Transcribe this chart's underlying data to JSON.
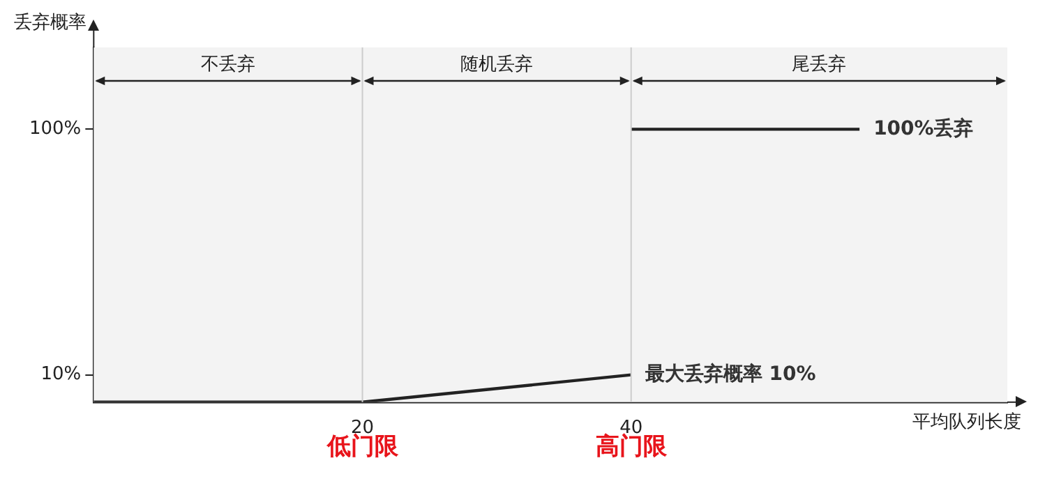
{
  "chart_data": {
    "type": "line",
    "xlabel": "平均队列长度",
    "ylabel": "丢弃概率",
    "series": [
      {
        "color": "#222222",
        "x": [
          0,
          20,
          40
        ],
        "values": [
          0,
          0,
          10
        ]
      },
      {
        "color": "#222222",
        "x": [
          40,
          57
        ],
        "values": [
          100,
          100
        ]
      }
    ],
    "xlim": [
      0,
      68
    ],
    "xticks": [
      20,
      40
    ],
    "ylim": [
      0,
      130
    ],
    "yticks": [
      {
        "value": 10,
        "label": "10%"
      },
      {
        "value": 100,
        "label": "100%"
      }
    ],
    "ref_lines": [
      {
        "axis": "x",
        "value": 20,
        "color": "#cccccc"
      },
      {
        "axis": "x",
        "value": 40,
        "color": "#cccccc"
      }
    ],
    "bands": [
      {
        "axis": "x",
        "from": 0,
        "to": 20,
        "label": "不丢弃",
        "color": "#f3f3f3"
      },
      {
        "axis": "x",
        "from": 20,
        "to": 40,
        "label": "随机丢弃",
        "color": "#f3f3f3"
      },
      {
        "axis": "x",
        "from": 40,
        "to": 68,
        "label": "尾丢弃",
        "color": "#f3f3f3"
      }
    ],
    "annotations": [
      {
        "text": "100%丢弃",
        "x": 57,
        "y": 100
      },
      {
        "text": "最大丢弃概率 10%",
        "x": 40,
        "y": 10
      },
      {
        "text": "低门限",
        "x": 20,
        "y": 0
      },
      {
        "text": "高门限",
        "x": 40,
        "y": 0
      }
    ],
    "grid": false,
    "legend": false,
    "marker": "none",
    "line_style": "solid"
  }
}
